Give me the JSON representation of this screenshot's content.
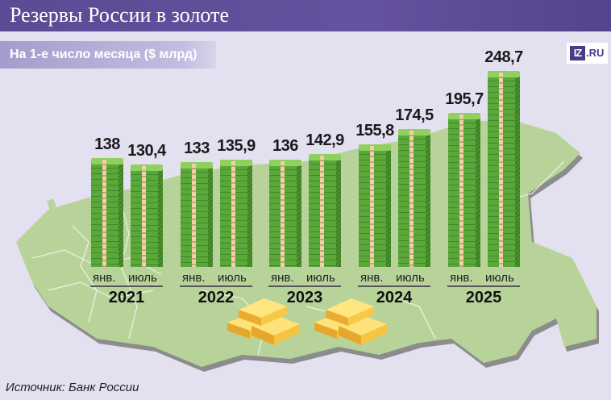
{
  "header": {
    "title": "Резервы России в золоте",
    "subtitle": "На 1-е число месяца ($ млрд)",
    "logo_mark": "IZ",
    "logo_suffix": ".RU"
  },
  "footer": {
    "source": "Источник: Банк России"
  },
  "colors": {
    "title_bar": "#5c4a94",
    "subtitle_bar": "#a69ccc",
    "background": "#e3e0f0",
    "map": "#b8d39a",
    "bar": "#5aa83a",
    "gold": "#f5c542"
  },
  "chart_data": {
    "type": "bar",
    "title": "Резервы России в золоте",
    "subtitle": "На 1-е число месяца ($ млрд)",
    "xlabel": "",
    "ylabel": "$ млрд",
    "grid": false,
    "legend": "none",
    "categories": [
      "янв. 2021",
      "июль 2021",
      "янв. 2022",
      "июль 2022",
      "янв. 2023",
      "июль 2023",
      "янв. 2024",
      "июль 2024",
      "янв. 2025",
      "июль 2025"
    ],
    "values": [
      138,
      130.4,
      133,
      135.9,
      136,
      142.9,
      155.8,
      174.5,
      195.7,
      248.7
    ],
    "value_labels": [
      "138",
      "130,4",
      "133",
      "135,9",
      "136",
      "142,9",
      "155,8",
      "174,5",
      "195,7",
      "248,7"
    ],
    "groups": [
      {
        "year": "2021",
        "months": [
          "янв.",
          "июль"
        ]
      },
      {
        "year": "2022",
        "months": [
          "янв.",
          "июль"
        ]
      },
      {
        "year": "2023",
        "months": [
          "янв.",
          "июль"
        ]
      },
      {
        "year": "2024",
        "months": [
          "янв.",
          "июль"
        ]
      },
      {
        "year": "2025",
        "months": [
          "янв.",
          "июль"
        ]
      }
    ],
    "ylim": [
      0,
      250
    ]
  }
}
